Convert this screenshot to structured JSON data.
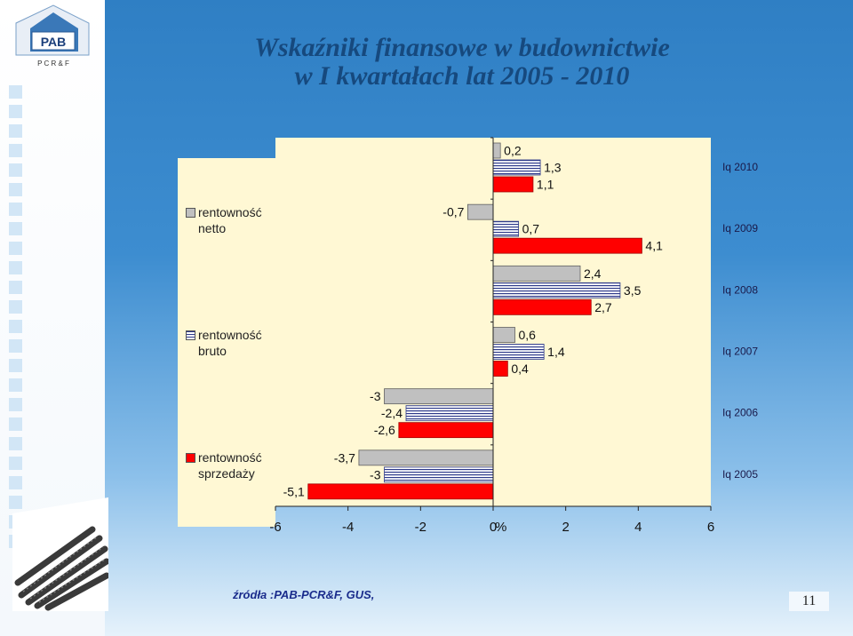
{
  "logo": {
    "text": "PAB",
    "subtext": "P C R & F"
  },
  "title": {
    "line1": "Wskaźniki finansowe w  budownictwie",
    "line2": "w I kwartałach lat 2005 - 2010"
  },
  "legend": [
    {
      "label": "rentowność netto",
      "color": "#c0c0c0",
      "pattern": "solid"
    },
    {
      "label": "rentowność bruto",
      "color": "#2e3a8a",
      "pattern": "stripes"
    },
    {
      "label": "rentowność sprzedaży",
      "color": "#ff0000",
      "pattern": "solid"
    }
  ],
  "chart_data": {
    "type": "bar",
    "orientation": "horizontal",
    "categories": [
      "Iq 2010",
      "Iq 2009",
      "Iq 2008",
      "Iq 2007",
      "Iq 2006",
      "Iq 2005"
    ],
    "series": [
      {
        "name": "rentowność netto",
        "values": [
          0.2,
          -0.7,
          2.4,
          0.6,
          -3,
          -3.7
        ]
      },
      {
        "name": "rentowność bruto",
        "values": [
          1.3,
          0.7,
          3.5,
          1.4,
          -2.4,
          -3
        ]
      },
      {
        "name": "rentowność sprzedaży",
        "values": [
          1.1,
          4.1,
          2.7,
          0.4,
          -2.6,
          -5.1
        ]
      }
    ],
    "data_labels": [
      [
        "0,2",
        "1,3",
        "1,1"
      ],
      [
        "-0,7",
        "0,7",
        "4,1"
      ],
      [
        "2,4",
        "3,5",
        "2,7"
      ],
      [
        "0,6",
        "1,4",
        "0,4"
      ],
      [
        "-3",
        "-2,4",
        "-2,6"
      ],
      [
        "-3,7",
        "-3",
        "-5,1"
      ]
    ],
    "xlim": [
      -6,
      6
    ],
    "x_ticks": [
      -6,
      -4,
      -2,
      0,
      2,
      4,
      6
    ],
    "x_tick_labels": [
      "-6",
      "-4",
      "-2",
      "0",
      "2",
      "4",
      "6"
    ],
    "x_unit_label": "%",
    "grid": false,
    "legend_position": "left"
  },
  "source": "źródła :PAB-PCR&F, GUS,",
  "page_number": "11"
}
